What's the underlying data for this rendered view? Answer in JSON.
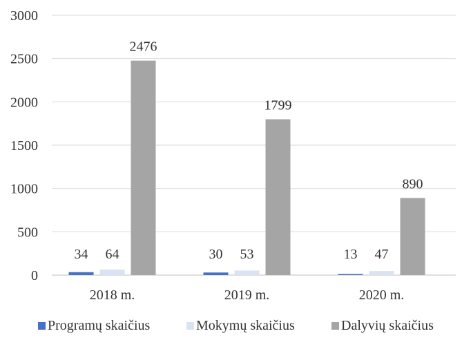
{
  "chart_data": {
    "type": "bar",
    "categories": [
      "2018 m.",
      "2019 m.",
      "2020 m."
    ],
    "series": [
      {
        "name": "Programų skaičius",
        "values": [
          34,
          30,
          13
        ],
        "color": "#4472c4"
      },
      {
        "name": "Mokymų skaičius",
        "values": [
          64,
          53,
          47
        ],
        "color": "#dae3f3"
      },
      {
        "name": "Dalyvių skaičius",
        "values": [
          2476,
          1799,
          890
        ],
        "color": "#a5a5a5"
      }
    ],
    "ylim": [
      0,
      3000
    ],
    "yticks": [
      0,
      500,
      1000,
      1500,
      2000,
      2500,
      3000
    ],
    "grid": true,
    "legend_position": "bottom",
    "data_labels": true
  }
}
